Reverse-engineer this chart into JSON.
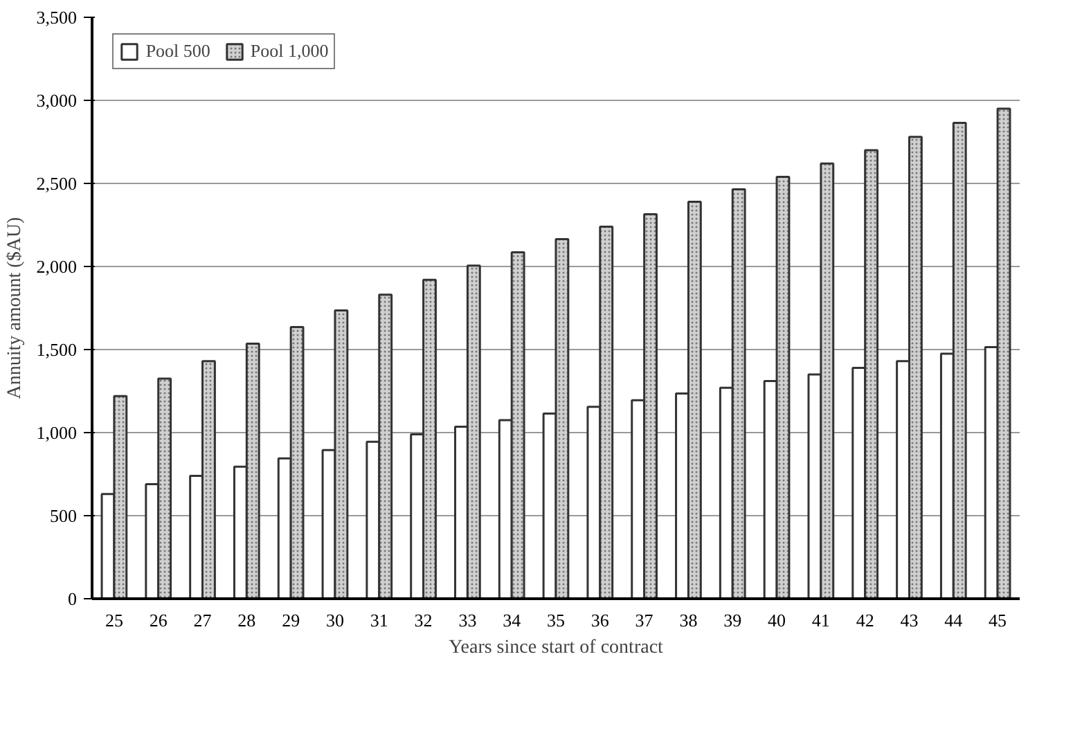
{
  "chart_data": {
    "type": "bar",
    "xlabel": "Years since start of contract",
    "ylabel": "Annuity amount ($AU)",
    "categories": [
      "25",
      "26",
      "27",
      "28",
      "29",
      "30",
      "31",
      "32",
      "33",
      "34",
      "35",
      "36",
      "37",
      "38",
      "39",
      "40",
      "41",
      "42",
      "43",
      "44",
      "45"
    ],
    "series": [
      {
        "name": "Pool 500",
        "color": "#ffffff",
        "values": [
          630,
          690,
          740,
          795,
          845,
          895,
          945,
          990,
          1035,
          1075,
          1115,
          1155,
          1195,
          1235,
          1270,
          1310,
          1350,
          1390,
          1430,
          1475,
          1515
        ]
      },
      {
        "name": "Pool 1,000",
        "color": "#d0d0d0",
        "values": [
          1220,
          1325,
          1430,
          1535,
          1635,
          1735,
          1830,
          1920,
          2005,
          2085,
          2165,
          2240,
          2315,
          2390,
          2465,
          2540,
          2620,
          2700,
          2780,
          2865,
          2950
        ]
      }
    ],
    "ylim": [
      0,
      3500
    ],
    "yticks": [
      {
        "value": 0,
        "label": "0"
      },
      {
        "value": 500,
        "label": "500"
      },
      {
        "value": 1000,
        "label": "1,000"
      },
      {
        "value": 1500,
        "label": "1,500"
      },
      {
        "value": 2000,
        "label": "2,000"
      },
      {
        "value": 2500,
        "label": "2,500"
      },
      {
        "value": 3000,
        "label": "3,000"
      },
      {
        "value": 3500,
        "label": "3,500"
      }
    ],
    "grid": "y",
    "legend": "top left"
  }
}
